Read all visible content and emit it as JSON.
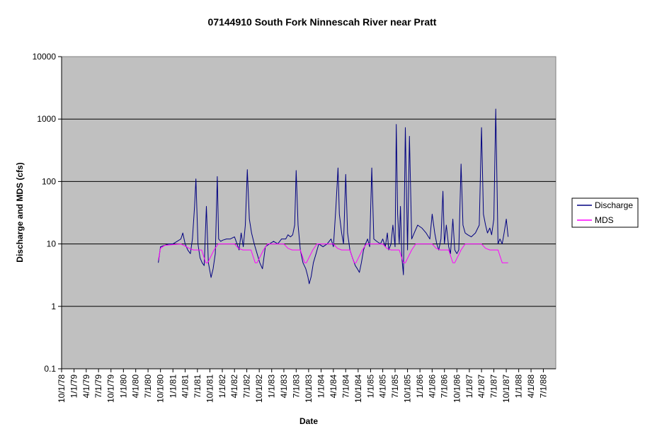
{
  "chart_data": {
    "type": "line",
    "title": "07144910 South Fork Ninnescah River near Pratt",
    "xlabel": "Date",
    "ylabel": "Discharge and MDS (cfs)",
    "y_scale": "log",
    "ylim": [
      0.1,
      10000
    ],
    "y_ticks": [
      {
        "value": 0.1,
        "label": "0.1"
      },
      {
        "value": 1,
        "label": "1"
      },
      {
        "value": 10,
        "label": "10"
      },
      {
        "value": 100,
        "label": "100"
      },
      {
        "value": 1000,
        "label": "1000"
      },
      {
        "value": 10000,
        "label": "10000"
      }
    ],
    "x_ticks": [
      "10/1/78",
      "1/1/79",
      "4/1/79",
      "7/1/79",
      "10/1/79",
      "1/1/80",
      "4/1/80",
      "7/1/80",
      "10/1/80",
      "1/1/81",
      "4/1/81",
      "7/1/81",
      "10/1/81",
      "1/1/82",
      "4/1/82",
      "7/1/82",
      "10/1/82",
      "1/1/83",
      "4/1/83",
      "7/1/83",
      "10/1/83",
      "1/1/84",
      "4/1/84",
      "7/1/84",
      "10/1/84",
      "1/1/85",
      "4/1/85",
      "7/1/85",
      "10/1/85",
      "1/1/86",
      "4/1/86",
      "7/1/86",
      "10/1/86",
      "1/1/87",
      "4/1/87",
      "7/1/87",
      "10/1/87",
      "1/1/88",
      "4/1/88",
      "7/1/88"
    ],
    "grid": "horizontal",
    "plot_background": "#c0c0c0",
    "legend_position": "right",
    "series": [
      {
        "name": "Discharge",
        "color": "#000080",
        "x": [
          "9/15/80",
          "10/1/80",
          "11/1/80",
          "12/1/80",
          "1/1/81",
          "2/1/81",
          "3/1/81",
          "3/15/81",
          "4/1/81",
          "4/20/81",
          "5/10/81",
          "5/25/81",
          "6/10/81",
          "6/20/81",
          "7/5/81",
          "7/20/81",
          "8/5/81",
          "8/20/81",
          "9/5/81",
          "9/20/81",
          "10/10/81",
          "10/25/81",
          "11/10/81",
          "11/25/81",
          "12/5/81",
          "12/20/81",
          "1/5/82",
          "2/1/82",
          "3/1/82",
          "4/1/82",
          "4/20/82",
          "5/5/82",
          "5/20/82",
          "6/5/82",
          "6/20/82",
          "7/5/82",
          "7/20/82",
          "8/5/82",
          "8/25/82",
          "9/15/82",
          "10/5/82",
          "10/25/82",
          "11/15/82",
          "12/15/82",
          "1/15/83",
          "2/15/83",
          "3/15/83",
          "4/15/83",
          "5/1/83",
          "5/20/83",
          "6/5/83",
          "6/20/83",
          "7/1/83",
          "7/15/83",
          "8/1/83",
          "8/20/83",
          "9/10/83",
          "9/25/83",
          "10/5/83",
          "10/20/83",
          "11/5/83",
          "11/25/83",
          "12/15/83",
          "1/15/84",
          "2/15/84",
          "3/15/84",
          "4/1/84",
          "4/20/84",
          "5/5/84",
          "5/15/84",
          "6/1/84",
          "6/15/84",
          "7/1/84",
          "7/15/84",
          "8/1/84",
          "8/20/84",
          "9/10/84",
          "9/25/84",
          "10/10/84",
          "10/25/84",
          "11/10/84",
          "11/25/84",
          "12/10/84",
          "12/25/84",
          "1/10/85",
          "1/25/85",
          "2/15/85",
          "3/15/85",
          "4/1/85",
          "4/20/85",
          "5/5/85",
          "5/15/85",
          "6/1/85",
          "6/15/85",
          "7/1/85",
          "7/10/85",
          "7/20/85",
          "8/1/85",
          "8/10/85",
          "8/20/85",
          "9/1/85",
          "9/15/85",
          "10/1/85",
          "10/15/85",
          "11/1/85",
          "11/20/85",
          "12/15/85",
          "1/15/86",
          "2/15/86",
          "3/15/86",
          "4/1/86",
          "4/20/86",
          "5/5/86",
          "5/20/86",
          "6/5/86",
          "6/20/86",
          "7/1/86",
          "7/15/86",
          "8/1/86",
          "8/15/86",
          "9/1/86",
          "9/15/86",
          "10/1/86",
          "10/15/86",
          "11/1/86",
          "11/15/86",
          "12/1/86",
          "12/20/86",
          "1/15/87",
          "2/15/87",
          "3/15/87",
          "4/1/87",
          "4/15/87",
          "5/1/87",
          "5/15/87",
          "6/1/87",
          "6/15/87",
          "7/1/87",
          "7/15/87",
          "8/1/87",
          "8/15/87",
          "9/1/87",
          "9/15/87",
          "10/1/87",
          "10/15/87"
        ],
        "values": [
          5,
          9,
          9.5,
          10,
          10,
          11,
          12,
          15,
          10,
          8,
          7,
          12,
          40,
          110,
          10,
          6,
          5,
          4.5,
          40,
          5,
          2.9,
          4,
          7,
          120,
          12,
          11,
          11.5,
          12,
          12,
          13,
          10,
          8,
          15,
          9,
          20,
          155,
          25,
          15,
          10,
          7,
          5,
          4,
          9,
          10,
          11,
          10,
          12,
          12,
          14,
          13,
          14,
          20,
          150,
          20,
          8,
          5,
          4,
          3,
          2.3,
          3,
          5,
          7,
          10,
          9,
          10,
          12,
          9,
          40,
          165,
          30,
          15,
          10,
          130,
          15,
          8,
          6,
          4.5,
          4,
          3.5,
          5,
          8,
          10,
          12,
          9,
          165,
          12,
          11,
          10,
          12,
          9,
          15,
          8,
          10,
          20,
          9,
          820,
          30,
          10,
          40,
          6,
          3.2,
          730,
          8,
          530,
          12,
          15,
          20,
          18,
          15,
          12,
          30,
          15,
          10,
          8,
          12,
          70,
          10,
          20,
          9,
          7,
          25,
          8,
          7,
          8,
          190,
          20,
          15,
          14,
          13,
          15,
          20,
          730,
          30,
          20,
          15,
          18,
          14,
          25,
          1450,
          10,
          12,
          10,
          15,
          25,
          13
        ]
      },
      {
        "name": "MDS",
        "color": "#ff00ff",
        "x": [
          "9/15/80",
          "10/1/80",
          "11/1/80",
          "3/1/81",
          "5/1/81",
          "6/1/81",
          "8/1/81",
          "9/1/81",
          "9/15/81",
          "11/1/81",
          "12/1/81",
          "2/1/82",
          "4/1/82",
          "5/1/82",
          "6/1/82",
          "8/1/82",
          "9/1/82",
          "9/15/82",
          "11/1/82",
          "12/1/82",
          "2/1/83",
          "4/1/83",
          "5/1/83",
          "6/1/83",
          "8/1/83",
          "9/1/83",
          "9/15/83",
          "11/1/83",
          "12/1/83",
          "2/1/84",
          "4/1/84",
          "5/1/84",
          "6/1/84",
          "8/1/84",
          "9/1/84",
          "9/15/84",
          "11/1/84",
          "12/1/84",
          "2/1/85",
          "4/1/85",
          "5/1/85",
          "6/1/85",
          "8/1/85",
          "9/1/85",
          "9/15/85",
          "11/1/85",
          "12/1/85",
          "2/1/86",
          "4/1/86",
          "5/1/86",
          "6/1/86",
          "8/1/86",
          "9/1/86",
          "9/15/86",
          "11/1/86",
          "12/1/86",
          "2/1/87",
          "4/1/87",
          "5/1/87",
          "6/1/87",
          "8/1/87",
          "9/1/87",
          "9/15/87",
          "10/15/87"
        ],
        "values": [
          5.5,
          8.5,
          9.5,
          10,
          8.5,
          8,
          8,
          5,
          5,
          8,
          10,
          10,
          10,
          8.5,
          8,
          8,
          5,
          5,
          8,
          10,
          10,
          10,
          8.5,
          8,
          8,
          5,
          5,
          8,
          10,
          10,
          10,
          8.5,
          8,
          8,
          5,
          5,
          8,
          10,
          10,
          10,
          8.5,
          8,
          8,
          5,
          5,
          8,
          10,
          10,
          10,
          8.5,
          8,
          8,
          5,
          5,
          8,
          10,
          10,
          10,
          8.5,
          8,
          8,
          5,
          5,
          5
        ]
      }
    ]
  }
}
